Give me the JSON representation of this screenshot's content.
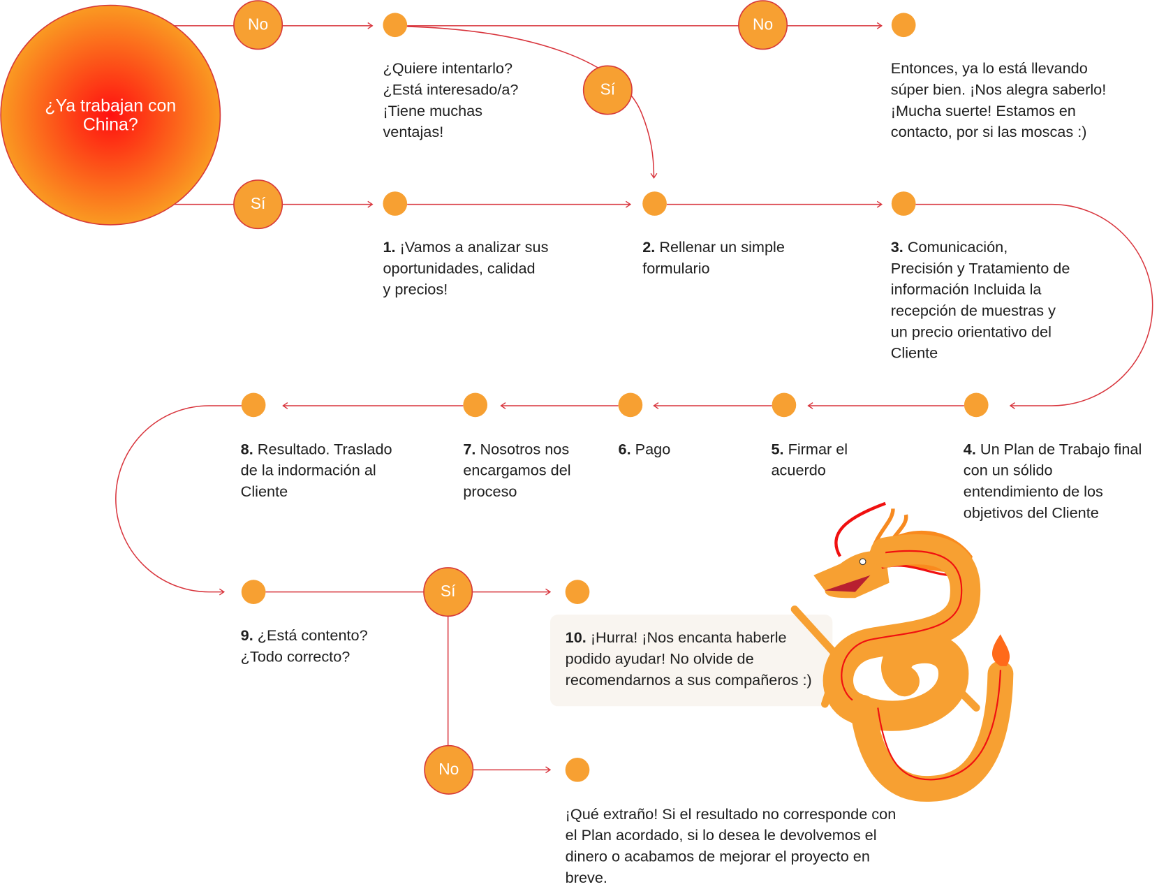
{
  "colors": {
    "accent": "#f7a032",
    "line": "#d8343c",
    "center": "#ff1010"
  },
  "start": {
    "question": "¿Ya trabajan con China?"
  },
  "labels": {
    "no_top": "No",
    "si_top": "Sí",
    "no_right": "No",
    "si_curve": "Sí",
    "si_bottom": "Sí",
    "no_bottom": "No"
  },
  "texts": {
    "try": "¿Quiere intentarlo?\n¿Está interesado/a?\n¡Tiene muchas\nventajas!",
    "already": "Entonces, ya lo está llevando\nsúper bien. ¡Nos alegra saberlo!\n¡Mucha suerte! Estamos en\ncontacto, por si las moscas :)",
    "no_result": "¡Qué extraño! Si el resultado no corresponde con\nel Plan acordado, si lo desea le devolvemos el\ndinero o acabamos de mejorar el proyecto en\nbreve."
  },
  "steps": [
    {
      "num": "1.",
      "text": " ¡Vamos a analizar sus\noportunidades, calidad\ny precios!"
    },
    {
      "num": "2.",
      "text": " Rellenar un simple\nformulario"
    },
    {
      "num": "3.",
      "text": " Comunicación,\nPrecisión y Tratamiento de\ninformación Incluida la\nrecepción de muestras y\nun precio orientativo del\nCliente"
    },
    {
      "num": "4.",
      "text": " Un Plan de Trabajo final\ncon un sólido\nentendimiento de los\nobjetivos del Cliente"
    },
    {
      "num": "5.",
      "text": " Firmar el\nacuerdo"
    },
    {
      "num": "6.",
      "text": " Pago"
    },
    {
      "num": "7.",
      "text": " Nosotros nos\nencargamos del\nproceso"
    },
    {
      "num": "8.",
      "text": " Resultado. Traslado\nde la indormación al\nCliente"
    },
    {
      "num": "9.",
      "text": " ¿Está contento?\n¿Todo correcto?"
    },
    {
      "num": "10.",
      "text": " ¡Hurra! ¡Nos encanta haberle\npodido ayudar! No olvide de\nrecomendarnos a sus compañeros :)"
    }
  ],
  "illustration": {
    "icon": "dragon-icon"
  }
}
